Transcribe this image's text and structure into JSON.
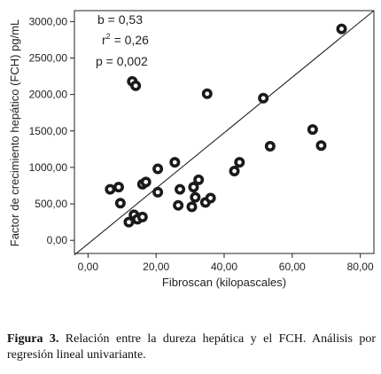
{
  "chart_data": {
    "type": "scatter",
    "xlabel": "Fibroscan (kilopascales)",
    "ylabel": "Factor de crecimiento hepático (FCH) pg/mL",
    "xlim": [
      -4,
      84
    ],
    "ylim": [
      -180,
      3150
    ],
    "x_ticks": [
      "0,00",
      "20,00",
      "40,00",
      "60,00",
      "80,00"
    ],
    "x_tick_values": [
      0,
      20,
      40,
      60,
      80
    ],
    "y_ticks": [
      "0,00",
      "500,00",
      "1000,00",
      "1500,00",
      "2000,00",
      "2500,00",
      "3000,00"
    ],
    "y_tick_values": [
      0,
      500,
      1000,
      1500,
      2000,
      2500,
      3000
    ],
    "annotations": {
      "b": "b = 0,53",
      "r2_prefix": "r",
      "r2_sup": "2",
      "r2_value": " = 0,26",
      "p": "p = 0,002"
    },
    "regression_line": {
      "x": [
        -4,
        84
      ],
      "y": [
        -200,
        3150
      ]
    },
    "points": [
      {
        "x": 6.5,
        "y": 700
      },
      {
        "x": 9,
        "y": 730
      },
      {
        "x": 9.5,
        "y": 510
      },
      {
        "x": 12,
        "y": 250
      },
      {
        "x": 13,
        "y": 2180
      },
      {
        "x": 13.5,
        "y": 350
      },
      {
        "x": 14,
        "y": 2120
      },
      {
        "x": 14.5,
        "y": 290
      },
      {
        "x": 16,
        "y": 320
      },
      {
        "x": 16,
        "y": 770
      },
      {
        "x": 17,
        "y": 800
      },
      {
        "x": 20.5,
        "y": 660
      },
      {
        "x": 20.5,
        "y": 980
      },
      {
        "x": 25.5,
        "y": 1070
      },
      {
        "x": 26.5,
        "y": 480
      },
      {
        "x": 27,
        "y": 700
      },
      {
        "x": 30.5,
        "y": 460
      },
      {
        "x": 31,
        "y": 730
      },
      {
        "x": 31.5,
        "y": 590
      },
      {
        "x": 32.5,
        "y": 830
      },
      {
        "x": 34.5,
        "y": 520
      },
      {
        "x": 35,
        "y": 2010
      },
      {
        "x": 36,
        "y": 580
      },
      {
        "x": 43,
        "y": 950
      },
      {
        "x": 44.5,
        "y": 1070
      },
      {
        "x": 51.5,
        "y": 1950
      },
      {
        "x": 53.5,
        "y": 1290
      },
      {
        "x": 66,
        "y": 1520
      },
      {
        "x": 68.5,
        "y": 1300
      },
      {
        "x": 74.5,
        "y": 2900
      }
    ]
  },
  "caption": {
    "label": "Figura 3.",
    "text": " Relación entre la dureza hepática y el FCH. Análisis por regresión lineal univariante."
  }
}
